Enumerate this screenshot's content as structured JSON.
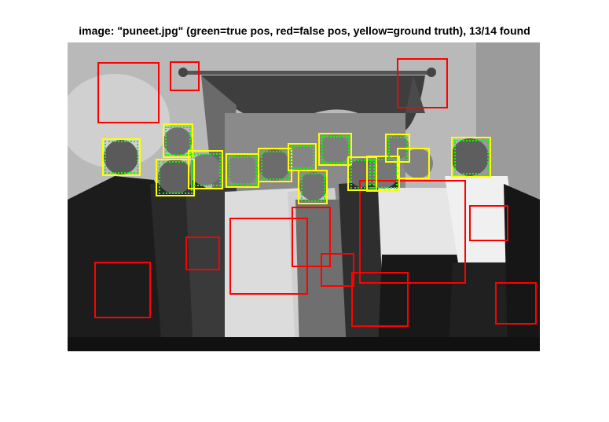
{
  "figure": {
    "title": "image: \"puneet.jpg\" (green=true pos, red=false pos, yellow=ground truth), 13/14 found",
    "image_name": "puneet.jpg",
    "found": 13,
    "total": 14
  },
  "colors": {
    "true_pos": "#00ff00",
    "false_pos": "#ff0000",
    "ground_truth": "#ffff00"
  }
}
